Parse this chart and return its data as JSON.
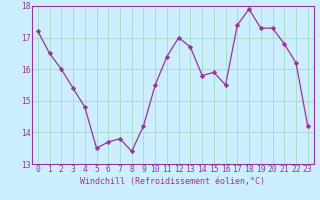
{
  "x": [
    0,
    1,
    2,
    3,
    4,
    5,
    6,
    7,
    8,
    9,
    10,
    11,
    12,
    13,
    14,
    15,
    16,
    17,
    18,
    19,
    20,
    21,
    22,
    23
  ],
  "y": [
    17.2,
    16.5,
    16.0,
    15.4,
    14.8,
    13.5,
    13.7,
    13.8,
    13.4,
    14.2,
    15.5,
    16.4,
    17.0,
    16.7,
    15.8,
    15.9,
    15.5,
    17.4,
    17.9,
    17.3,
    17.3,
    16.8,
    16.2,
    14.2
  ],
  "line_color": "#993399",
  "marker": "D",
  "marker_size": 2.2,
  "background_color": "#cceeff",
  "grid_color": "#aaddcc",
  "xlabel": "Windchill (Refroidissement éolien,°C)",
  "xlabel_color": "#993399",
  "tick_color": "#993399",
  "spine_color": "#993399",
  "ylim": [
    13,
    18
  ],
  "xlim": [
    -0.5,
    23.5
  ],
  "yticks": [
    13,
    14,
    15,
    16,
    17,
    18
  ],
  "xticks": [
    0,
    1,
    2,
    3,
    4,
    5,
    6,
    7,
    8,
    9,
    10,
    11,
    12,
    13,
    14,
    15,
    16,
    17,
    18,
    19,
    20,
    21,
    22,
    23
  ],
  "label_fontsize": 6.0,
  "tick_fontsize": 5.8
}
